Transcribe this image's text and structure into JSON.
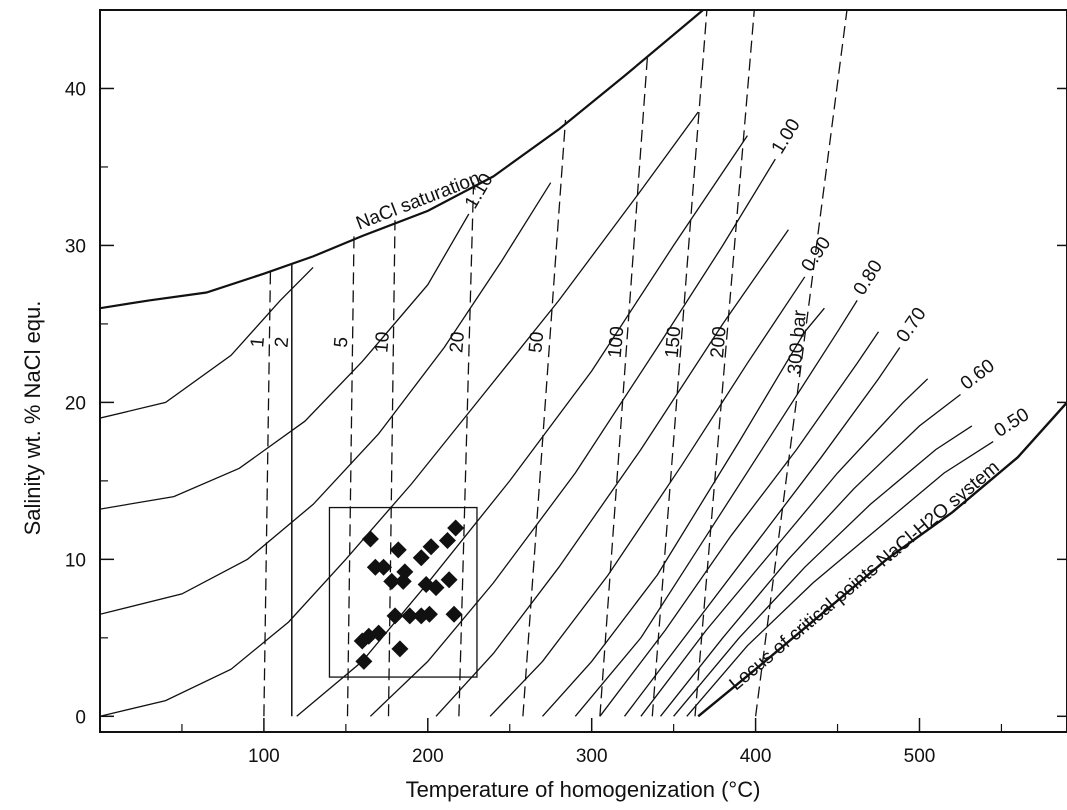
{
  "chart_data": {
    "type": "line",
    "title": "",
    "xlabel": "Temperature of homogenization (°C)",
    "ylabel": "Salinity wt. % NaCl equ.",
    "xlim": [
      0,
      590
    ],
    "ylim": [
      -1,
      45
    ],
    "xticks": [
      100,
      200,
      300,
      400,
      500
    ],
    "yticks": [
      0,
      10,
      20,
      30,
      40
    ],
    "grid": false,
    "saturation_curve": {
      "label": "NaCl saturation",
      "x": [
        0,
        30,
        65,
        100,
        130,
        160,
        200,
        240,
        280,
        320,
        360,
        385
      ],
      "y": [
        26,
        26.5,
        27,
        28.2,
        29.3,
        30.6,
        32.2,
        34.4,
        37.4,
        40.8,
        44.3,
        46.5
      ]
    },
    "critical_locus": {
      "label": "Locus of critical points NaCl-H2O system",
      "x": [
        365,
        400,
        440,
        480,
        520,
        560,
        590
      ],
      "y": [
        0,
        3,
        6.5,
        10,
        13,
        16.5,
        20
      ]
    },
    "density_curves": [
      {
        "label": "",
        "x": [
          0,
          40,
          80,
          110,
          130
        ],
        "y": [
          19,
          20,
          23,
          26.5,
          28.6
        ]
      },
      {
        "label": "1.10",
        "x": [
          0,
          45,
          85,
          125,
          160,
          200,
          225
        ],
        "y": [
          13.2,
          14,
          15.8,
          18.8,
          22.6,
          27.5,
          32
        ]
      },
      {
        "label": "",
        "x": [
          0,
          50,
          90,
          130,
          170,
          210,
          245,
          275
        ],
        "y": [
          6.5,
          7.8,
          10,
          13.5,
          18,
          23.5,
          29,
          34
        ]
      },
      {
        "label": "",
        "x": [
          0,
          40,
          80,
          115,
          150,
          190,
          230,
          280,
          330,
          365
        ],
        "y": [
          0,
          1,
          3,
          6,
          10,
          14.8,
          20,
          26.5,
          33.5,
          38.5
        ]
      },
      {
        "label": "",
        "x": [
          120,
          160,
          200,
          250,
          300,
          350,
          395
        ],
        "y": [
          0,
          3.5,
          8.5,
          15,
          22,
          30,
          37
        ]
      },
      {
        "label": "1.00",
        "x": [
          165,
          200,
          240,
          290,
          340,
          380,
          412
        ],
        "y": [
          0,
          3.5,
          8.5,
          15.5,
          23.5,
          30,
          35.5
        ]
      },
      {
        "label": "",
        "x": [
          205,
          240,
          280,
          330,
          380,
          420
        ],
        "y": [
          0,
          4,
          9.5,
          17,
          25,
          31
        ]
      },
      {
        "label": "0.90",
        "x": [
          238,
          270,
          310,
          355,
          395,
          430
        ],
        "y": [
          0,
          3.5,
          9,
          16,
          22.5,
          28
        ]
      },
      {
        "label": "",
        "x": [
          270,
          300,
          340,
          390,
          430,
          442
        ],
        "y": [
          0,
          3.5,
          9,
          17.5,
          24.5,
          26
        ]
      },
      {
        "label": "0.80",
        "x": [
          290,
          330,
          370,
          410,
          450,
          462
        ],
        "y": [
          0,
          5,
          11.5,
          18,
          24.5,
          26.5
        ]
      },
      {
        "label": "",
        "x": [
          305,
          345,
          385,
          425,
          462,
          475
        ],
        "y": [
          0,
          5.5,
          11.5,
          17,
          22.5,
          24.5
        ]
      },
      {
        "label": "0.70",
        "x": [
          320,
          360,
          400,
          440,
          475,
          488
        ],
        "y": [
          0,
          5.5,
          11,
          16.5,
          21.5,
          23.5
        ]
      },
      {
        "label": "",
        "x": [
          330,
          370,
          410,
          450,
          490,
          505
        ],
        "y": [
          0,
          5.5,
          10.5,
          15.5,
          20,
          21.5
        ]
      },
      {
        "label": "0.60",
        "x": [
          342,
          380,
          420,
          460,
          500,
          525
        ],
        "y": [
          0,
          5,
          10,
          14.5,
          18.5,
          20.5
        ]
      },
      {
        "label": "",
        "x": [
          350,
          390,
          430,
          470,
          510,
          532
        ],
        "y": [
          0,
          5,
          9.5,
          13.5,
          17,
          18.5
        ]
      },
      {
        "label": "0.50",
        "x": [
          358,
          395,
          435,
          475,
          515,
          545
        ],
        "y": [
          0,
          4.5,
          8.5,
          12,
          15.5,
          17.5
        ]
      }
    ],
    "isobars": [
      {
        "label": "1",
        "x": [
          100,
          104
        ],
        "y": [
          0,
          28.6
        ]
      },
      {
        "label": "5",
        "x": [
          151,
          155
        ],
        "y": [
          0,
          30.6
        ]
      },
      {
        "label": "10",
        "x": [
          176,
          180
        ],
        "y": [
          0,
          31.6
        ]
      },
      {
        "label": "20",
        "x": [
          219,
          228
        ],
        "y": [
          0,
          34.3
        ]
      },
      {
        "label": "50",
        "x": [
          258,
          284
        ],
        "y": [
          0,
          38
        ]
      },
      {
        "label": "100",
        "x": [
          305,
          334
        ],
        "y": [
          0,
          42
        ]
      },
      {
        "label": "150",
        "x": [
          337,
          371
        ],
        "y": [
          0,
          46
        ]
      },
      {
        "label": "200",
        "x": [
          363,
          400
        ],
        "y": [
          0,
          46
        ]
      },
      {
        "label": "300 bar",
        "x": [
          400,
          457
        ],
        "y": [
          0,
          46
        ]
      }
    ],
    "isobar_solid": {
      "label": "2",
      "x": [
        117,
        117
      ],
      "y": [
        0,
        28.8
      ]
    },
    "box": {
      "x": [
        140,
        230
      ],
      "y": [
        2.5,
        13.3
      ]
    },
    "samples": {
      "x": [
        165,
        173,
        182,
        186,
        196,
        202,
        212,
        217,
        168,
        178,
        185,
        199,
        205,
        213,
        196,
        201,
        216,
        160,
        164,
        170,
        180,
        189,
        183,
        161
      ],
      "y": [
        11.3,
        9.5,
        10.6,
        9.2,
        10.1,
        10.8,
        11.2,
        12,
        9.5,
        8.6,
        8.6,
        8.4,
        8.2,
        8.7,
        6.4,
        6.5,
        6.5,
        4.8,
        5.1,
        5.3,
        6.4,
        6.4,
        4.3,
        3.5
      ]
    }
  }
}
